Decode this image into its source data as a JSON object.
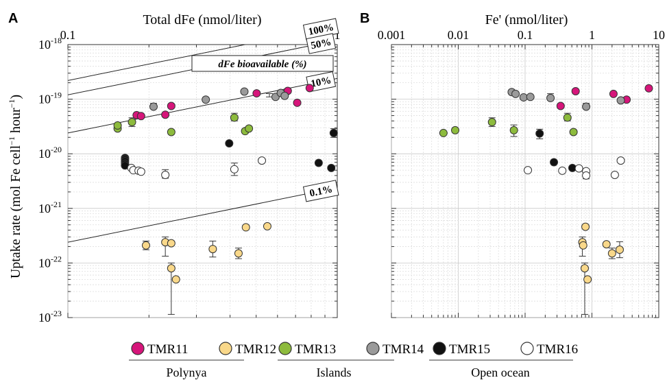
{
  "chart_data": [
    {
      "panel_letter": "A",
      "type": "scatter",
      "title": "",
      "xlabel": "Total dFe (nmol/liter)",
      "ylabel_main": "Uptake rate (mol Fe cell",
      "ylabel_sup1": "−1",
      "ylabel_mid": " hour",
      "ylabel_sup2": "−1",
      "ylabel_end": ")",
      "x_scale": "log",
      "y_scale": "log",
      "xlim": [
        0.1,
        1
      ],
      "ylim": [
        1e-23,
        1e-18
      ],
      "x_axis_position": "top",
      "x_ticks": [
        {
          "value": 0.1,
          "label": "0.1"
        },
        {
          "value": 1,
          "label": "1"
        }
      ],
      "y_ticks": [
        {
          "value": 1e-18,
          "base": "10",
          "exp": "-18"
        },
        {
          "value": 1e-19,
          "base": "10",
          "exp": "-19"
        },
        {
          "value": 1e-20,
          "base": "10",
          "exp": "-20"
        },
        {
          "value": 1e-21,
          "base": "10",
          "exp": "-21"
        },
        {
          "value": 1e-22,
          "base": "10",
          "exp": "-22"
        },
        {
          "value": 1e-23,
          "base": "10",
          "exp": "-23"
        }
      ],
      "grid": true,
      "lines_title": "dFe bioavailable (%)",
      "bioavailability_lines": [
        {
          "label": "100%",
          "factor": 2.2e-19,
          "x0": 0.1
        },
        {
          "label": "50%",
          "factor": 1.2e-19,
          "x0": 0.1
        },
        {
          "label": "10%",
          "factor": 2.4e-20,
          "x0": 0.1
        },
        {
          "label": "0.1%",
          "factor": 2.4e-22,
          "x0": 0.1
        }
      ],
      "series": [
        {
          "name": "TMR11",
          "color": "#d6157a",
          "points": [
            {
              "x": 0.18,
              "y": 5.1e-20
            },
            {
              "x": 0.187,
              "y": 4.9e-20
            },
            {
              "x": 0.23,
              "y": 5.2e-20
            },
            {
              "x": 0.242,
              "y": 7.5e-20
            },
            {
              "x": 0.502,
              "y": 1.28e-19
            },
            {
              "x": 0.655,
              "y": 1.42e-19
            },
            {
              "x": 0.71,
              "y": 8.6e-20
            },
            {
              "x": 0.79,
              "y": 1.6e-19
            }
          ]
        },
        {
          "name": "TMR12",
          "color": "#f9d88a",
          "points": [
            {
              "x": 0.195,
              "y": 2.1e-22
            },
            {
              "x": 0.23,
              "y": 2.4e-22
            },
            {
              "x": 0.242,
              "y": 2.3e-22
            },
            {
              "x": 0.242,
              "y": 8e-23
            },
            {
              "x": 0.252,
              "y": 5e-23
            },
            {
              "x": 0.345,
              "y": 1.8e-22
            },
            {
              "x": 0.43,
              "y": 1.5e-22
            },
            {
              "x": 0.458,
              "y": 4.5e-22
            },
            {
              "x": 0.55,
              "y": 4.7e-22
            }
          ]
        },
        {
          "name": "TMR13",
          "color": "#8dbb3d",
          "points": [
            {
              "x": 0.153,
              "y": 2.9e-20
            },
            {
              "x": 0.153,
              "y": 3.3e-20
            },
            {
              "x": 0.173,
              "y": 3.8e-20
            },
            {
              "x": 0.242,
              "y": 2.5e-20
            },
            {
              "x": 0.415,
              "y": 4.6e-20
            },
            {
              "x": 0.455,
              "y": 2.6e-20
            },
            {
              "x": 0.47,
              "y": 2.9e-20
            }
          ]
        },
        {
          "name": "TMR14",
          "color": "#9a9a9a",
          "points": [
            {
              "x": 0.208,
              "y": 7.3e-20
            },
            {
              "x": 0.325,
              "y": 9.8e-20
            },
            {
              "x": 0.452,
              "y": 1.38e-19
            },
            {
              "x": 0.59,
              "y": 1.1e-19
            },
            {
              "x": 0.617,
              "y": 1.3e-19
            },
            {
              "x": 0.638,
              "y": 1.15e-19
            }
          ]
        },
        {
          "name": "TMR15",
          "color": "#111111",
          "points": [
            {
              "x": 0.163,
              "y": 8.4e-21
            },
            {
              "x": 0.163,
              "y": 7.9e-21
            },
            {
              "x": 0.163,
              "y": 7.3e-21
            },
            {
              "x": 0.163,
              "y": 6.6e-21
            },
            {
              "x": 0.163,
              "y": 6.1e-21
            },
            {
              "x": 0.397,
              "y": 1.55e-20
            },
            {
              "x": 0.853,
              "y": 6.8e-21
            },
            {
              "x": 0.95,
              "y": 5.5e-21
            },
            {
              "x": 0.97,
              "y": 2.4e-20
            }
          ]
        },
        {
          "name": "TMR16",
          "color": "#ffffff",
          "points": [
            {
              "x": 0.172,
              "y": 5.5e-21
            },
            {
              "x": 0.175,
              "y": 5e-21
            },
            {
              "x": 0.183,
              "y": 4.9e-21
            },
            {
              "x": 0.187,
              "y": 4.7e-21
            },
            {
              "x": 0.23,
              "y": 4.1e-21
            },
            {
              "x": 0.415,
              "y": 5.2e-21
            },
            {
              "x": 0.525,
              "y": 7.5e-21
            }
          ]
        }
      ]
    },
    {
      "panel_letter": "B",
      "type": "scatter",
      "title": "",
      "xlabel": "Fe' (nmol/liter)",
      "x_scale": "log",
      "y_scale": "log",
      "xlim": [
        0.001,
        10
      ],
      "ylim": [
        1e-23,
        1e-18
      ],
      "x_axis_position": "top",
      "x_ticks": [
        {
          "value": 0.001,
          "label": "0.001"
        },
        {
          "value": 0.01,
          "label": "0.01"
        },
        {
          "value": 0.1,
          "label": "0.1"
        },
        {
          "value": 1,
          "label": "1"
        },
        {
          "value": 10,
          "label": "10"
        }
      ],
      "grid": true,
      "series": [
        {
          "name": "TMR11",
          "color": "#d6157a",
          "points": [
            {
              "x": 0.34,
              "y": 7.5e-20
            },
            {
              "x": 0.57,
              "y": 1.4e-19
            },
            {
              "x": 2.1,
              "y": 1.25e-19
            },
            {
              "x": 3.3,
              "y": 9.8e-20
            },
            {
              "x": 7.1,
              "y": 1.58e-19
            }
          ]
        },
        {
          "name": "TMR12",
          "color": "#f9d88a",
          "points": [
            {
              "x": 0.72,
              "y": 2.4e-22
            },
            {
              "x": 0.74,
              "y": 2.1e-22
            },
            {
              "x": 0.8,
              "y": 4.6e-22
            },
            {
              "x": 0.78,
              "y": 8e-23
            },
            {
              "x": 0.86,
              "y": 5e-23
            },
            {
              "x": 1.65,
              "y": 2.2e-22
            },
            {
              "x": 2,
              "y": 1.5e-22
            },
            {
              "x": 2.6,
              "y": 1.75e-22
            }
          ]
        },
        {
          "name": "TMR13",
          "color": "#8dbb3d",
          "points": [
            {
              "x": 0.006,
              "y": 2.4e-20
            },
            {
              "x": 0.009,
              "y": 2.7e-20
            },
            {
              "x": 0.032,
              "y": 3.8e-20
            },
            {
              "x": 0.068,
              "y": 2.7e-20
            },
            {
              "x": 0.43,
              "y": 4.6e-20
            },
            {
              "x": 0.53,
              "y": 2.5e-20
            }
          ]
        },
        {
          "name": "TMR14",
          "color": "#9a9a9a",
          "points": [
            {
              "x": 0.063,
              "y": 1.35e-19
            },
            {
              "x": 0.072,
              "y": 1.25e-19
            },
            {
              "x": 0.095,
              "y": 1.08e-19
            },
            {
              "x": 0.12,
              "y": 1.1e-19
            },
            {
              "x": 0.24,
              "y": 1.05e-19
            },
            {
              "x": 0.82,
              "y": 7.3e-20
            },
            {
              "x": 2.7,
              "y": 9.5e-20
            }
          ]
        },
        {
          "name": "TMR15",
          "color": "#111111",
          "points": [
            {
              "x": 0.165,
              "y": 2.35e-20
            },
            {
              "x": 0.27,
              "y": 7e-21
            },
            {
              "x": 0.51,
              "y": 5.5e-21
            }
          ]
        },
        {
          "name": "TMR16",
          "color": "#ffffff",
          "points": [
            {
              "x": 0.11,
              "y": 5e-21
            },
            {
              "x": 0.36,
              "y": 4.9e-21
            },
            {
              "x": 0.64,
              "y": 5.4e-21
            },
            {
              "x": 0.82,
              "y": 4.8e-21
            },
            {
              "x": 0.82,
              "y": 4e-21
            },
            {
              "x": 2.2,
              "y": 4.1e-21
            },
            {
              "x": 2.7,
              "y": 7.5e-21
            }
          ]
        }
      ]
    }
  ],
  "legend": {
    "groups": [
      {
        "label": "Polynya",
        "items": [
          "TMR11",
          "TMR12"
        ]
      },
      {
        "label": "Islands",
        "items": [
          "TMR13",
          "TMR14"
        ]
      },
      {
        "label": "Open ocean",
        "items": [
          "TMR15",
          "TMR16"
        ]
      }
    ]
  }
}
